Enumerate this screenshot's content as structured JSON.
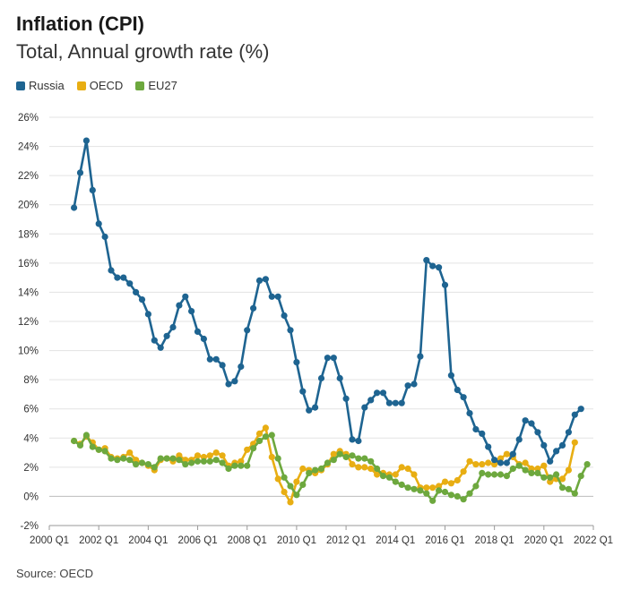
{
  "title": "Inflation (CPI)",
  "subtitle": "Total, Annual growth rate (%)",
  "source": "Source: OECD",
  "colors": {
    "Russia": "#1e6491",
    "OECD": "#e8ae13",
    "EU27": "#6da83e",
    "grid": "#e3e3e3"
  },
  "chart_data": {
    "type": "line",
    "title": "Inflation (CPI)",
    "subtitle": "Total, Annual growth rate (%)",
    "ylabel": "",
    "xlabel": "",
    "ylim": [
      -2,
      26
    ],
    "xlim": [
      2000,
      2022
    ],
    "y_ticks": [
      "-2%",
      "0%",
      "2%",
      "4%",
      "6%",
      "8%",
      "10%",
      "12%",
      "14%",
      "16%",
      "18%",
      "20%",
      "22%",
      "24%",
      "26%"
    ],
    "x_ticks": [
      "2000 Q1",
      "2002 Q1",
      "2004 Q1",
      "2006 Q1",
      "2008 Q1",
      "2010 Q1",
      "2012 Q1",
      "2014 Q1",
      "2016 Q1",
      "2018 Q1",
      "2020 Q1",
      "2022 Q1"
    ],
    "legend_position": "top-left",
    "grid": true,
    "x_start": "2001 Q1",
    "x_step_quarters": 1,
    "series": [
      {
        "name": "Russia",
        "values": [
          19.8,
          22.2,
          24.4,
          21.0,
          18.7,
          17.8,
          15.5,
          15.0,
          15.0,
          14.6,
          14.0,
          13.5,
          12.5,
          10.7,
          10.2,
          11.0,
          11.6,
          13.1,
          13.7,
          12.7,
          11.3,
          10.8,
          9.4,
          9.4,
          9.0,
          7.7,
          7.9,
          8.9,
          11.4,
          12.9,
          14.8,
          14.9,
          13.7,
          13.7,
          12.4,
          11.4,
          9.2,
          7.2,
          5.9,
          6.1,
          8.1,
          9.5,
          9.5,
          8.1,
          6.7,
          3.9,
          3.8,
          6.1,
          6.6,
          7.1,
          7.1,
          6.4,
          6.4,
          6.4,
          7.6,
          7.7,
          9.6,
          16.2,
          15.8,
          15.7,
          14.5,
          8.3,
          7.3,
          6.8,
          5.7,
          4.6,
          4.3,
          3.4,
          2.5,
          2.3,
          2.3,
          2.9,
          3.9,
          5.2,
          5.0,
          4.4,
          3.5,
          2.4,
          3.1,
          3.5,
          4.4,
          5.6,
          6.0
        ]
      },
      {
        "name": "OECD",
        "values": [
          3.8,
          3.6,
          4.1,
          3.7,
          3.2,
          3.3,
          2.7,
          2.6,
          2.7,
          3.0,
          2.5,
          2.3,
          2.1,
          1.8,
          2.5,
          2.6,
          2.4,
          2.8,
          2.5,
          2.5,
          2.8,
          2.7,
          2.8,
          3.0,
          2.8,
          2.1,
          2.3,
          2.4,
          3.2,
          3.6,
          4.3,
          4.7,
          2.7,
          1.2,
          0.3,
          -0.4,
          1.0,
          1.9,
          1.8,
          1.6,
          1.8,
          2.2,
          2.9,
          3.1,
          2.9,
          2.2,
          2.0,
          2.0,
          1.9,
          1.5,
          1.6,
          1.5,
          1.5,
          2.0,
          1.9,
          1.5,
          0.6,
          0.6,
          0.6,
          0.7,
          1.0,
          0.9,
          1.1,
          1.7,
          2.4,
          2.2,
          2.2,
          2.3,
          2.2,
          2.6,
          2.9,
          2.7,
          2.2,
          2.3,
          1.9,
          1.9,
          2.1,
          1.0,
          1.2,
          1.2,
          1.8,
          3.7
        ]
      },
      {
        "name": "EU27",
        "values": [
          3.8,
          3.5,
          4.2,
          3.4,
          3.2,
          3.1,
          2.6,
          2.5,
          2.6,
          2.5,
          2.2,
          2.3,
          2.2,
          2.0,
          2.6,
          2.6,
          2.6,
          2.5,
          2.2,
          2.3,
          2.4,
          2.4,
          2.4,
          2.5,
          2.3,
          1.9,
          2.1,
          2.1,
          2.1,
          3.3,
          3.8,
          4.1,
          4.2,
          2.6,
          1.3,
          0.7,
          0.1,
          0.8,
          1.6,
          1.8,
          1.9,
          2.3,
          2.5,
          2.9,
          2.7,
          2.8,
          2.6,
          2.6,
          2.4,
          1.9,
          1.4,
          1.3,
          1.0,
          0.8,
          0.6,
          0.5,
          0.4,
          0.2,
          -0.3,
          0.4,
          0.3,
          0.1,
          0.0,
          -0.2,
          0.2,
          0.7,
          1.6,
          1.5,
          1.5,
          1.5,
          1.4,
          1.9,
          2.1,
          1.8,
          1.6,
          1.6,
          1.3,
          1.3,
          1.5,
          0.6,
          0.5,
          0.2,
          1.4,
          2.2
        ]
      }
    ]
  }
}
